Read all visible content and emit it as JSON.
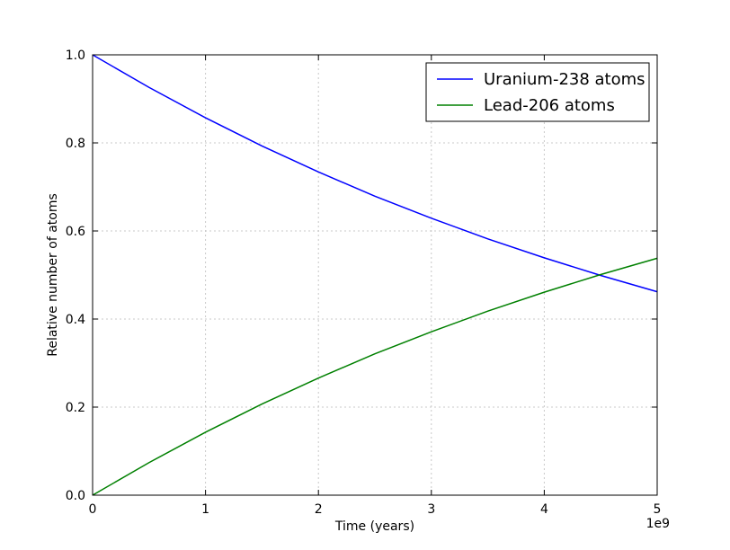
{
  "chart_data": {
    "type": "line",
    "title": "",
    "xlabel": "Time (years)",
    "ylabel": "Relative number of atoms",
    "x_offset_label": "1e9",
    "xlim": [
      0,
      5
    ],
    "ylim": [
      0.0,
      1.0
    ],
    "x_ticks": [
      0,
      1,
      2,
      3,
      4,
      5
    ],
    "x_tick_labels": [
      "0",
      "1",
      "2",
      "3",
      "4",
      "5"
    ],
    "y_ticks": [
      0.0,
      0.2,
      0.4,
      0.6,
      0.8,
      1.0
    ],
    "y_tick_labels": [
      "0.0",
      "0.2",
      "0.4",
      "0.6",
      "0.8",
      "1.0"
    ],
    "grid": true,
    "legend_position": "top-right",
    "x": [
      0,
      0.5,
      1,
      1.5,
      2,
      2.5,
      3,
      3.5,
      4,
      4.5,
      5
    ],
    "series": [
      {
        "name": "Uranium-238 atoms",
        "color": "#0000ff",
        "values": [
          1.0,
          0.926,
          0.857,
          0.793,
          0.734,
          0.679,
          0.629,
          0.582,
          0.539,
          0.499,
          0.462
        ]
      },
      {
        "name": "Lead-206 atoms",
        "color": "#008000",
        "values": [
          0.0,
          0.074,
          0.143,
          0.207,
          0.266,
          0.321,
          0.371,
          0.418,
          0.461,
          0.501,
          0.538
        ]
      }
    ]
  }
}
